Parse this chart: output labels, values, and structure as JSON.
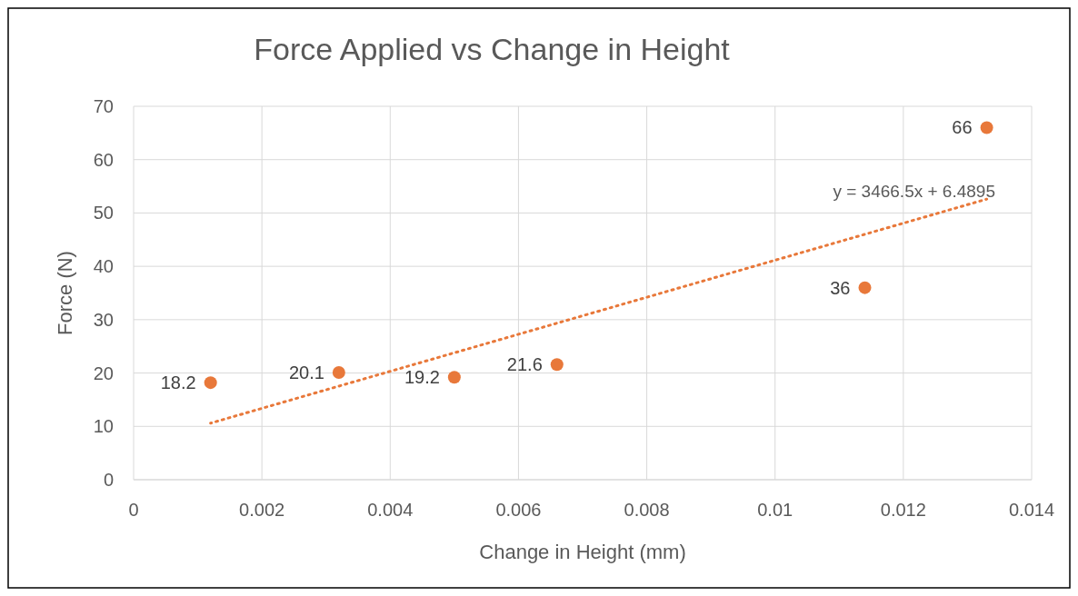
{
  "chart_data": {
    "type": "scatter",
    "title": "Force Applied vs Change in Height",
    "xlabel": "Change in Height (mm)",
    "ylabel": "Force (N)",
    "xlim": [
      0,
      0.014
    ],
    "xticks": [
      0,
      0.002,
      0.004,
      0.006,
      0.008,
      0.01,
      0.012,
      0.014
    ],
    "ylim": [
      0,
      70
    ],
    "yticks": [
      0,
      10,
      20,
      30,
      40,
      50,
      60,
      70
    ],
    "grid": true,
    "annotations": [
      "y = 3466.5x + 6.4895"
    ],
    "series": [
      {
        "color": "#e8783a",
        "marker": "circle",
        "x": [
          0.0012,
          0.0032,
          0.005,
          0.0066,
          0.0114,
          0.0133
        ],
        "values": [
          18.2,
          20.1,
          19.2,
          21.6,
          36,
          66
        ],
        "value_labels": [
          "18.2",
          "20.1",
          "19.2",
          "21.6",
          "36",
          "66"
        ]
      },
      {
        "type": "line",
        "color": "#e8783a",
        "marker": "none",
        "line_style": "dotted",
        "x": [
          0.0012,
          0.0133
        ],
        "values": [
          10.6,
          52.6
        ]
      }
    ]
  }
}
